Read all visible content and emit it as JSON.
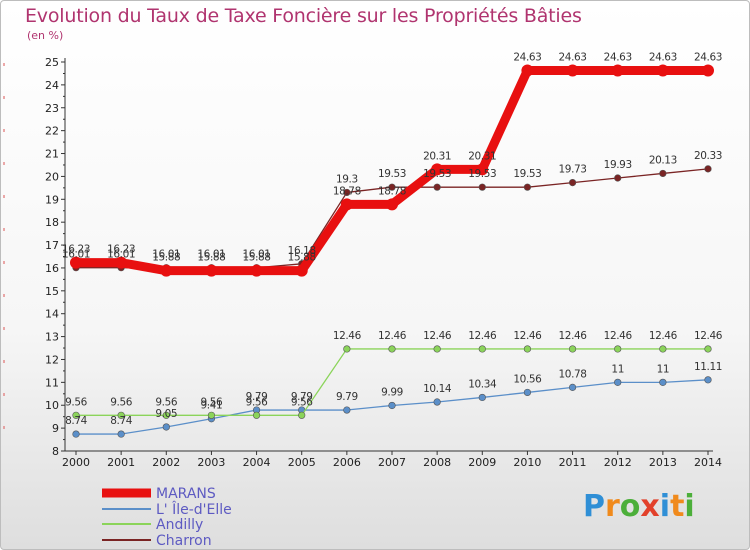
{
  "header": {
    "title": "Evolution du Taux de Taxe Foncière sur les Propriétés Bâties",
    "unit": "(en %)"
  },
  "logo": {
    "text": "Proxiti",
    "colors": [
      "#2f8fd6",
      "#f08a1c",
      "#4caf3a",
      "#e2412b",
      "#2f8fd6",
      "#f08a1c",
      "#4caf3a"
    ]
  },
  "chart_data": {
    "type": "line",
    "x": [
      "2000",
      "2001",
      "2002",
      "2003",
      "2004",
      "2005",
      "2006",
      "2007",
      "2008",
      "2009",
      "2010",
      "2011",
      "2012",
      "2013",
      "2014"
    ],
    "ylim": [
      8,
      25
    ],
    "yticks": [
      "8",
      "9",
      "10",
      "11",
      "12",
      "13",
      "14",
      "15",
      "16",
      "17",
      "18",
      "19",
      "20",
      "21",
      "22",
      "23",
      "24",
      "25"
    ],
    "grid": false,
    "legend_position": "bottom-left",
    "series": [
      {
        "name": "MARANS",
        "color": "#e81010",
        "values": [
          16.23,
          16.23,
          15.88,
          15.88,
          15.88,
          15.88,
          18.78,
          18.78,
          20.31,
          20.31,
          24.63,
          24.63,
          24.63,
          24.63,
          24.63
        ],
        "labels": [
          "16.23",
          "16.23",
          "15.88",
          "15.88",
          "15.88",
          "15.88",
          "18.78",
          "18.78",
          "20.31",
          "20.31",
          "24.63",
          "24.63",
          "24.63",
          "24.63",
          "24.63"
        ]
      },
      {
        "name": "L' Île-d'Elle",
        "color": "#5b8fc9",
        "values": [
          8.74,
          8.74,
          9.05,
          9.41,
          9.79,
          9.79,
          9.79,
          9.99,
          10.14,
          10.34,
          10.56,
          10.78,
          11,
          11,
          11.11
        ],
        "labels": [
          "8.74",
          "8.74",
          "9.05",
          "9.41",
          "9.79",
          "9.79",
          "9.79",
          "9.99",
          "10.14",
          "10.34",
          "10.56",
          "10.78",
          "11",
          "11",
          "11.11"
        ]
      },
      {
        "name": "Andilly",
        "color": "#8bd45a",
        "values": [
          9.56,
          9.56,
          9.56,
          9.56,
          9.56,
          9.56,
          12.46,
          12.46,
          12.46,
          12.46,
          12.46,
          12.46,
          12.46,
          12.46,
          12.46
        ],
        "labels": [
          "9.56",
          "9.56",
          "9.56",
          "9.56",
          "9.56",
          "9.56",
          "12.46",
          "12.46",
          "12.46",
          "12.46",
          "12.46",
          "12.46",
          "12.46",
          "12.46",
          "12.46"
        ]
      },
      {
        "name": "Charron",
        "color": "#7a2424",
        "values": [
          16.01,
          16.01,
          16.01,
          16.01,
          16.01,
          16.18,
          19.3,
          19.53,
          19.53,
          19.53,
          19.53,
          19.73,
          19.93,
          20.13,
          20.33
        ],
        "labels": [
          "16.01",
          "16.01",
          "16.01",
          "16.01",
          "16.01",
          "16.18",
          "19.3",
          "19.53",
          "19.53",
          "19.53",
          "19.53",
          "19.73",
          "19.93",
          "20.13",
          "20.33"
        ]
      }
    ]
  }
}
